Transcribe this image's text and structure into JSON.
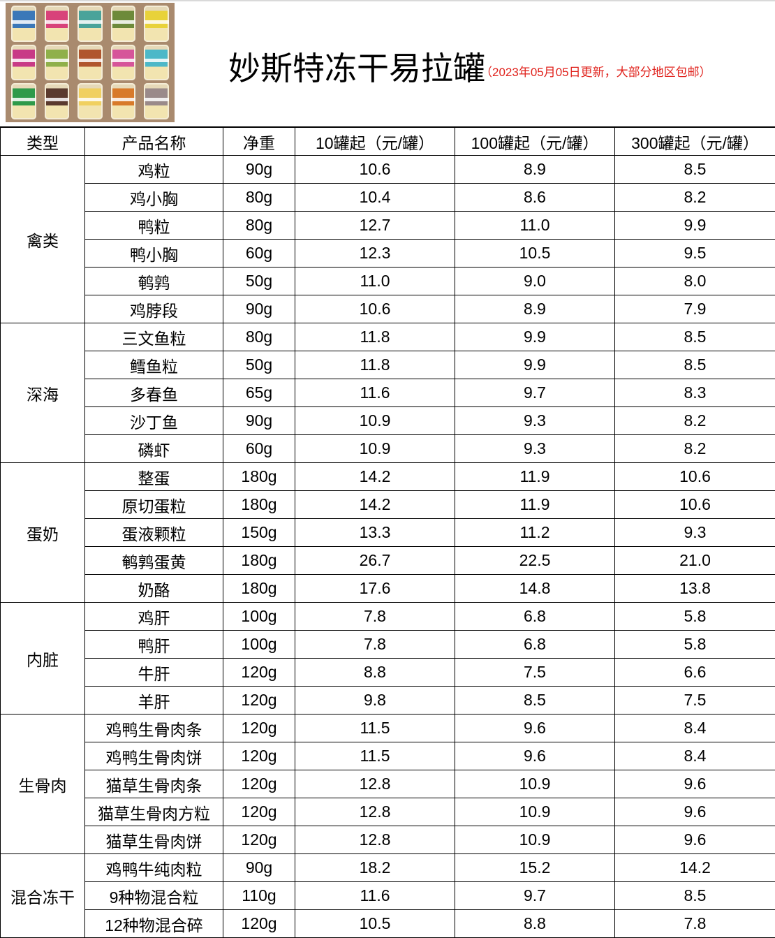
{
  "header": {
    "title": "妙斯特冻干易拉罐",
    "subtitle": "（2023年05月05日更新，大部分地区包邮）",
    "subtitle_color": "#e0211b",
    "product_image": {
      "can_colors": [
        "#3b78b8",
        "#d8427a",
        "#4aa39a",
        "#6d8a3a",
        "#e8d23a",
        "#c83a86",
        "#8fb04a",
        "#b0562e",
        "#d6559a",
        "#4cb8c8",
        "#2e9a4a",
        "#5a3a2e",
        "#f0d060",
        "#d87a2a",
        "#9a8a8a"
      ]
    }
  },
  "table": {
    "columns": [
      "类型",
      "产品名称",
      "净重",
      "10罐起（元/罐）",
      "100罐起（元/罐）",
      "300罐起（元/罐）"
    ],
    "groups": [
      {
        "category": "禽类",
        "rows": [
          [
            "鸡粒",
            "90g",
            "10.6",
            "8.9",
            "8.5"
          ],
          [
            "鸡小胸",
            "80g",
            "10.4",
            "8.6",
            "8.2"
          ],
          [
            "鸭粒",
            "80g",
            "12.7",
            "11.0",
            "9.9"
          ],
          [
            "鸭小胸",
            "60g",
            "12.3",
            "10.5",
            "9.5"
          ],
          [
            "鹌鹑",
            "50g",
            "11.0",
            "9.0",
            "8.0"
          ],
          [
            "鸡脖段",
            "90g",
            "10.6",
            "8.9",
            "7.9"
          ]
        ]
      },
      {
        "category": "深海",
        "rows": [
          [
            "三文鱼粒",
            "80g",
            "11.8",
            "9.9",
            "8.5"
          ],
          [
            "鳕鱼粒",
            "50g",
            "11.8",
            "9.9",
            "8.5"
          ],
          [
            "多春鱼",
            "65g",
            "11.6",
            "9.7",
            "8.3"
          ],
          [
            "沙丁鱼",
            "90g",
            "10.9",
            "9.3",
            "8.2"
          ],
          [
            "磷虾",
            "60g",
            "10.9",
            "9.3",
            "8.2"
          ]
        ]
      },
      {
        "category": "蛋奶",
        "rows": [
          [
            "整蛋",
            "180g",
            "14.2",
            "11.9",
            "10.6"
          ],
          [
            "原切蛋粒",
            "180g",
            "14.2",
            "11.9",
            "10.6"
          ],
          [
            "蛋液颗粒",
            "150g",
            "13.3",
            "11.2",
            "9.3"
          ],
          [
            "鹌鹑蛋黄",
            "180g",
            "26.7",
            "22.5",
            "21.0"
          ],
          [
            "奶酪",
            "180g",
            "17.6",
            "14.8",
            "13.8"
          ]
        ]
      },
      {
        "category": "内脏",
        "rows": [
          [
            "鸡肝",
            "100g",
            "7.8",
            "6.8",
            "5.8"
          ],
          [
            "鸭肝",
            "100g",
            "7.8",
            "6.8",
            "5.8"
          ],
          [
            "牛肝",
            "120g",
            "8.8",
            "7.5",
            "6.6"
          ],
          [
            "羊肝",
            "120g",
            "9.8",
            "8.5",
            "7.5"
          ]
        ]
      },
      {
        "category": "生骨肉",
        "rows": [
          [
            "鸡鸭生骨肉条",
            "120g",
            "11.5",
            "9.6",
            "8.4"
          ],
          [
            "鸡鸭生骨肉饼",
            "120g",
            "11.5",
            "9.6",
            "8.4"
          ],
          [
            "猫草生骨肉条",
            "120g",
            "12.8",
            "10.9",
            "9.6"
          ],
          [
            "猫草生骨肉方粒",
            "120g",
            "12.8",
            "10.9",
            "9.6"
          ],
          [
            "猫草生骨肉饼",
            "120g",
            "12.8",
            "10.9",
            "9.6"
          ]
        ]
      },
      {
        "category": "混合冻干",
        "rows": [
          [
            "鸡鸭牛纯肉粒",
            "90g",
            "18.2",
            "15.2",
            "14.2"
          ],
          [
            "9种物混合粒",
            "110g",
            "11.6",
            "9.7",
            "8.5"
          ],
          [
            "12种物混合碎",
            "120g",
            "10.5",
            "8.8",
            "7.8"
          ]
        ]
      }
    ]
  }
}
